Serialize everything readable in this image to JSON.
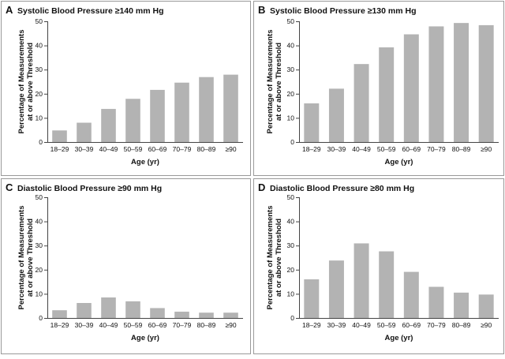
{
  "chart_data": [
    {
      "type": "bar",
      "panel": "A",
      "title": "Systolic Blood Pressure ≥140 mm Hg",
      "xlabel": "Age (yr)",
      "ylabel_lines": [
        "Percentage of Measurements",
        "at or above Threshold"
      ],
      "categories": [
        "18–29",
        "30–39",
        "40–49",
        "50–59",
        "60–69",
        "70–79",
        "80–89",
        "≥90"
      ],
      "values": [
        4.8,
        8,
        13.7,
        17.9,
        21.6,
        24.6,
        26.9,
        27.9
      ],
      "ylim": [
        0,
        50
      ],
      "yticks": [
        0,
        10,
        20,
        30,
        40,
        50
      ]
    },
    {
      "type": "bar",
      "panel": "B",
      "title": "Systolic Blood Pressure ≥130 mm Hg",
      "xlabel": "Age (yr)",
      "ylabel_lines": [
        "Percentage of Measurements",
        "at or above Threshold"
      ],
      "categories": [
        "18–29",
        "30–39",
        "40–49",
        "50–59",
        "60–69",
        "70–79",
        "80–89",
        "≥90"
      ],
      "values": [
        16,
        22.1,
        32.3,
        39.2,
        44.6,
        47.9,
        49.3,
        48.4
      ],
      "ylim": [
        0,
        50
      ],
      "yticks": [
        0,
        10,
        20,
        30,
        40,
        50
      ]
    },
    {
      "type": "bar",
      "panel": "C",
      "title": "Diastolic Blood Pressure ≥90 mm Hg",
      "xlabel": "Age (yr)",
      "ylabel_lines": [
        "Percentage of Measurements",
        "at or above Threshold"
      ],
      "categories": [
        "18–29",
        "30–39",
        "40–49",
        "50–59",
        "60–69",
        "70–79",
        "80–89",
        "≥90"
      ],
      "values": [
        3.2,
        6.2,
        8.5,
        6.9,
        4.1,
        2.6,
        2.2,
        2.2
      ],
      "ylim": [
        0,
        50
      ],
      "yticks": [
        0,
        10,
        20,
        30,
        40,
        50
      ]
    },
    {
      "type": "bar",
      "panel": "D",
      "title": "Diastolic Blood Pressure ≥80 mm Hg",
      "xlabel": "Age (yr)",
      "ylabel_lines": [
        "Percentage of Measurements",
        "at or above Threshold"
      ],
      "categories": [
        "18–29",
        "30–39",
        "40–49",
        "50–59",
        "60–69",
        "70–79",
        "80–89",
        "≥90"
      ],
      "values": [
        16,
        23.8,
        30.9,
        27.6,
        19.1,
        12.9,
        10.5,
        9.7
      ],
      "ylim": [
        0,
        50
      ],
      "yticks": [
        0,
        10,
        20,
        30,
        40,
        50
      ]
    }
  ],
  "colors": {
    "bar": "#b3b3b3",
    "axis": "#444444",
    "panel_border": "#9a9a9a",
    "text": "#111111"
  }
}
